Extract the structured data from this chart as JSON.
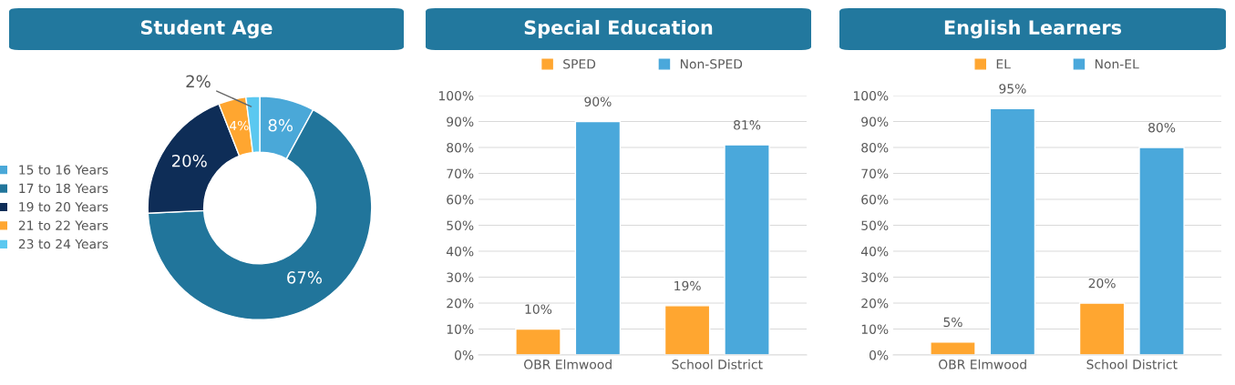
{
  "chart_data": [
    {
      "type": "donut",
      "title": "Student Age",
      "categories": [
        "15 to 16 Years",
        "17 to 18 Years",
        "19 to 20 Years",
        "21 to 22 Years",
        "23 to 24 Years"
      ],
      "values": [
        8,
        67,
        20,
        4,
        2
      ],
      "colors": [
        "#4aa8d8",
        "#21759b",
        "#0e2d57",
        "#ffa630",
        "#5bc8f0"
      ],
      "value_labels": [
        "8%",
        "67%",
        "20%",
        "4%",
        "2%"
      ],
      "legend": "left"
    },
    {
      "type": "bar",
      "title": "Special Education",
      "categories": [
        "OBR Elmwood",
        "School District"
      ],
      "series": [
        {
          "name": "SPED",
          "color": "#ffa630",
          "values": [
            10,
            19
          ],
          "value_labels": [
            "10%",
            "19%"
          ]
        },
        {
          "name": "Non-SPED",
          "color": "#4aa8db",
          "values": [
            90,
            81
          ],
          "value_labels": [
            "90%",
            "81%"
          ]
        }
      ],
      "ylim": [
        0,
        100
      ],
      "yticks": [
        {
          "value": 0,
          "label": "0%"
        },
        {
          "value": 10,
          "label": "10%"
        },
        {
          "value": 20,
          "label": "20%"
        },
        {
          "value": 30,
          "label": "30%"
        },
        {
          "value": 40,
          "label": "40%"
        },
        {
          "value": 50,
          "label": "50%"
        },
        {
          "value": 60,
          "label": "60%"
        },
        {
          "value": 70,
          "label": "70%"
        },
        {
          "value": 80,
          "label": "80%"
        },
        {
          "value": 90,
          "label": "90%"
        },
        {
          "value": 100,
          "label": "100%"
        }
      ],
      "grid": "y",
      "legend": "top"
    },
    {
      "type": "bar",
      "title": "English Learners",
      "categories": [
        "OBR Elmwood",
        "School District"
      ],
      "series": [
        {
          "name": "EL",
          "color": "#ffa630",
          "values": [
            5,
            20
          ],
          "value_labels": [
            "5%",
            "20%"
          ]
        },
        {
          "name": "Non-EL",
          "color": "#4aa8db",
          "values": [
            95,
            80
          ],
          "value_labels": [
            "95%",
            "80%"
          ]
        }
      ],
      "ylim": [
        0,
        100
      ],
      "yticks": [
        {
          "value": 0,
          "label": "0%"
        },
        {
          "value": 10,
          "label": "10%"
        },
        {
          "value": 20,
          "label": "20%"
        },
        {
          "value": 30,
          "label": "30%"
        },
        {
          "value": 40,
          "label": "40%"
        },
        {
          "value": 50,
          "label": "50%"
        },
        {
          "value": 60,
          "label": "60%"
        },
        {
          "value": 70,
          "label": "70%"
        },
        {
          "value": 80,
          "label": "80%"
        },
        {
          "value": 90,
          "label": "90%"
        },
        {
          "value": 100,
          "label": "100%"
        }
      ],
      "grid": "y",
      "legend": "top"
    }
  ]
}
